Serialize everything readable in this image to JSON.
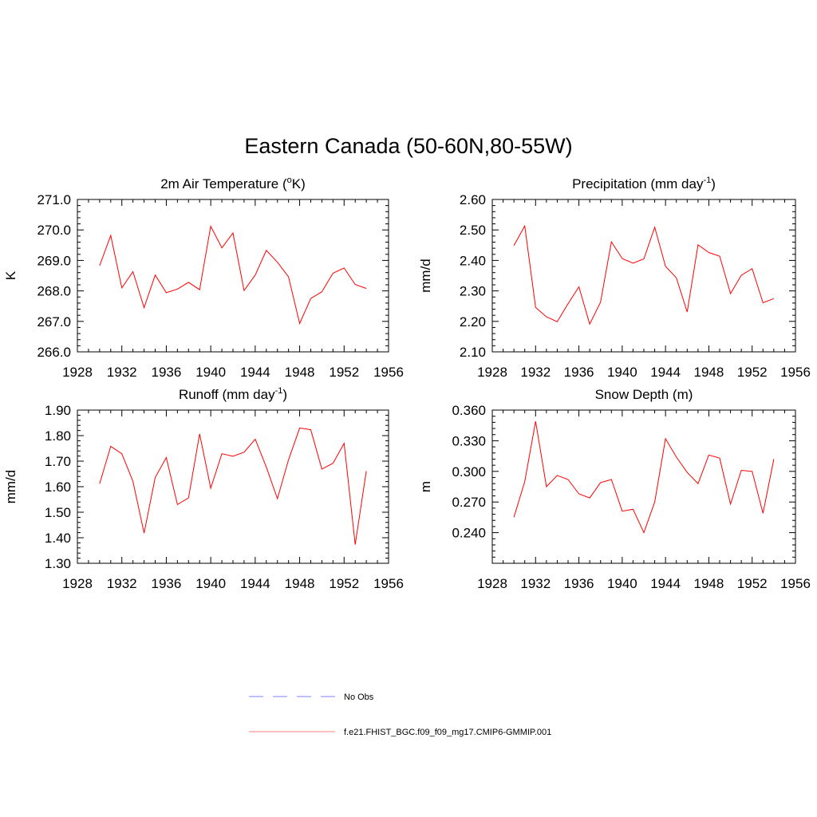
{
  "title": "Eastern Canada (50-60N,80-55W)",
  "legend": {
    "items": [
      {
        "label": "No Obs",
        "color": "#9999ff",
        "style": "dashed"
      },
      {
        "label": "f.e21.FHIST_BGC.f09_f09_mg17.CMIP6-GMMIP.001",
        "color": "#ff0000",
        "style": "solid"
      }
    ]
  },
  "line_color": "#ff0000",
  "chart_data": [
    {
      "type": "line",
      "title": "2m Air Temperature (",
      "title_sup": "o",
      "title_after": "K)",
      "ylabel": "K",
      "xlim": [
        1928,
        1956
      ],
      "ylim": [
        266.0,
        271.0
      ],
      "xticks": [
        1928,
        1932,
        1936,
        1940,
        1944,
        1948,
        1952,
        1956
      ],
      "yticks": [
        "266.0",
        "267.0",
        "268.0",
        "269.0",
        "270.0",
        "271.0"
      ],
      "x": [
        1930,
        1931,
        1932,
        1933,
        1934,
        1935,
        1936,
        1937,
        1938,
        1939,
        1940,
        1941,
        1942,
        1943,
        1944,
        1945,
        1946,
        1947,
        1948,
        1949,
        1950,
        1951,
        1952,
        1953,
        1954
      ],
      "values": [
        268.83,
        269.82,
        268.1,
        268.63,
        267.45,
        268.52,
        267.94,
        268.06,
        268.28,
        268.04,
        270.12,
        269.41,
        269.9,
        268.01,
        268.52,
        269.33,
        268.94,
        268.46,
        266.93,
        267.75,
        267.97,
        268.58,
        268.75,
        268.21,
        268.08
      ]
    },
    {
      "type": "line",
      "title": "Precipitation (mm day",
      "title_sup": "-1",
      "title_after": ")",
      "ylabel": "mm/d",
      "xlim": [
        1928,
        1956
      ],
      "ylim": [
        2.1,
        2.6
      ],
      "xticks": [
        1928,
        1932,
        1936,
        1940,
        1944,
        1948,
        1952,
        1956
      ],
      "yticks": [
        "2.10",
        "2.20",
        "2.30",
        "2.40",
        "2.50",
        "2.60"
      ],
      "x": [
        1930,
        1931,
        1932,
        1933,
        1934,
        1935,
        1936,
        1937,
        1938,
        1939,
        1940,
        1941,
        1942,
        1943,
        1944,
        1945,
        1946,
        1947,
        1948,
        1949,
        1950,
        1951,
        1952,
        1953,
        1954
      ],
      "values": [
        2.449,
        2.513,
        2.246,
        2.215,
        2.199,
        2.258,
        2.313,
        2.191,
        2.263,
        2.461,
        2.406,
        2.391,
        2.405,
        2.509,
        2.381,
        2.343,
        2.231,
        2.451,
        2.426,
        2.414,
        2.291,
        2.351,
        2.373,
        2.261,
        2.275
      ]
    },
    {
      "type": "line",
      "title": "Runoff (mm day",
      "title_sup": "-1",
      "title_after": ")",
      "ylabel": "mm/d",
      "xlim": [
        1928,
        1956
      ],
      "ylim": [
        1.3,
        1.9
      ],
      "xticks": [
        1928,
        1932,
        1936,
        1940,
        1944,
        1948,
        1952,
        1956
      ],
      "yticks": [
        "1.30",
        "1.40",
        "1.50",
        "1.60",
        "1.70",
        "1.80",
        "1.90"
      ],
      "x": [
        1930,
        1931,
        1932,
        1933,
        1934,
        1935,
        1936,
        1937,
        1938,
        1939,
        1940,
        1941,
        1942,
        1943,
        1944,
        1945,
        1946,
        1947,
        1948,
        1949,
        1950,
        1951,
        1952,
        1953,
        1954
      ],
      "values": [
        1.612,
        1.758,
        1.729,
        1.621,
        1.418,
        1.636,
        1.714,
        1.53,
        1.556,
        1.807,
        1.594,
        1.729,
        1.719,
        1.735,
        1.786,
        1.677,
        1.553,
        1.705,
        1.83,
        1.823,
        1.669,
        1.692,
        1.77,
        1.373,
        1.661
      ]
    },
    {
      "type": "line",
      "title": "Snow Depth (m)",
      "title_sup": "",
      "title_after": "",
      "ylabel": "m",
      "xlim": [
        1928,
        1956
      ],
      "ylim": [
        0.21,
        0.36
      ],
      "xticks": [
        1928,
        1932,
        1936,
        1940,
        1944,
        1948,
        1952,
        1956
      ],
      "yticks": [
        "0.240",
        "0.270",
        "0.300",
        "0.330",
        "0.360"
      ],
      "ytick_values": [
        0.24,
        0.27,
        0.3,
        0.33,
        0.36
      ],
      "x": [
        1930,
        1931,
        1932,
        1933,
        1934,
        1935,
        1936,
        1937,
        1938,
        1939,
        1940,
        1941,
        1942,
        1943,
        1944,
        1945,
        1946,
        1947,
        1948,
        1949,
        1950,
        1951,
        1952,
        1953,
        1954
      ],
      "values": [
        0.255,
        0.29,
        0.349,
        0.285,
        0.296,
        0.292,
        0.278,
        0.274,
        0.289,
        0.292,
        0.261,
        0.263,
        0.24,
        0.27,
        0.332,
        0.314,
        0.299,
        0.288,
        0.316,
        0.313,
        0.268,
        0.301,
        0.3,
        0.259,
        0.312
      ]
    }
  ]
}
